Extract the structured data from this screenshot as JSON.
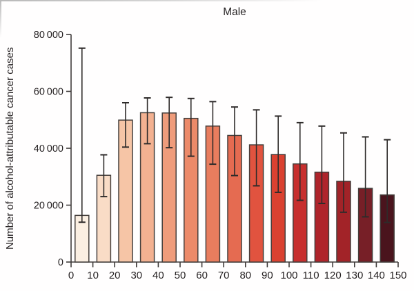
{
  "chart_data": {
    "type": "bar",
    "title": "Male",
    "xlabel": "",
    "ylabel": "Number of alcohol-attributable cancer cases",
    "xlim": [
      0,
      150
    ],
    "ylim": [
      0,
      80000
    ],
    "grid": false,
    "legend": false,
    "error_bars": true,
    "x_ticks": [
      0,
      10,
      20,
      30,
      40,
      50,
      60,
      70,
      80,
      90,
      100,
      110,
      120,
      130,
      140,
      150
    ],
    "y_ticks": [
      0,
      20000,
      40000,
      60000,
      80000
    ],
    "y_tick_labels": [
      "0",
      "20 000",
      "40 000",
      "60 000",
      "80 000"
    ],
    "axis_color": "#3e3a39",
    "text_color": "#231f20",
    "bar_outline": "#443f3c",
    "errorbar_color": "#2e2b2a",
    "bins": [
      {
        "range": [
          0,
          10
        ],
        "value": 16400,
        "ci_low": 14000,
        "ci_high": 75200,
        "color": "#fbefe2"
      },
      {
        "range": [
          10,
          20
        ],
        "value": 30500,
        "ci_low": 23000,
        "ci_high": 37700,
        "color": "#f9dcc6"
      },
      {
        "range": [
          20,
          30
        ],
        "value": 49900,
        "ci_low": 40400,
        "ci_high": 56000,
        "color": "#f6c5a6"
      },
      {
        "range": [
          30,
          40
        ],
        "value": 52500,
        "ci_low": 41600,
        "ci_high": 57700,
        "color": "#f3b191"
      },
      {
        "range": [
          40,
          50
        ],
        "value": 52400,
        "ci_low": 40200,
        "ci_high": 57900,
        "color": "#ef9c7b"
      },
      {
        "range": [
          50,
          60
        ],
        "value": 50500,
        "ci_low": 37200,
        "ci_high": 57500,
        "color": "#ec8a69"
      },
      {
        "range": [
          60,
          70
        ],
        "value": 47800,
        "ci_low": 34400,
        "ci_high": 56400,
        "color": "#e97d5e"
      },
      {
        "range": [
          70,
          80
        ],
        "value": 44500,
        "ci_low": 30400,
        "ci_high": 54500,
        "color": "#e56b51"
      },
      {
        "range": [
          80,
          90
        ],
        "value": 41200,
        "ci_low": 26800,
        "ci_high": 53500,
        "color": "#e1533f"
      },
      {
        "range": [
          90,
          100
        ],
        "value": 37800,
        "ci_low": 24500,
        "ci_high": 51300,
        "color": "#da4130"
      },
      {
        "range": [
          100,
          110
        ],
        "value": 34500,
        "ci_low": 21700,
        "ci_high": 49000,
        "color": "#c72f2e"
      },
      {
        "range": [
          110,
          120
        ],
        "value": 31600,
        "ci_low": 20600,
        "ci_high": 47800,
        "color": "#af242b"
      },
      {
        "range": [
          120,
          130
        ],
        "value": 28400,
        "ci_low": 17500,
        "ci_high": 45400,
        "color": "#a22328"
      },
      {
        "range": [
          130,
          140
        ],
        "value": 25900,
        "ci_low": 15900,
        "ci_high": 44000,
        "color": "#771f27"
      },
      {
        "range": [
          140,
          150
        ],
        "value": 23600,
        "ci_low": 13900,
        "ci_high": 43000,
        "color": "#4a141d"
      }
    ]
  }
}
